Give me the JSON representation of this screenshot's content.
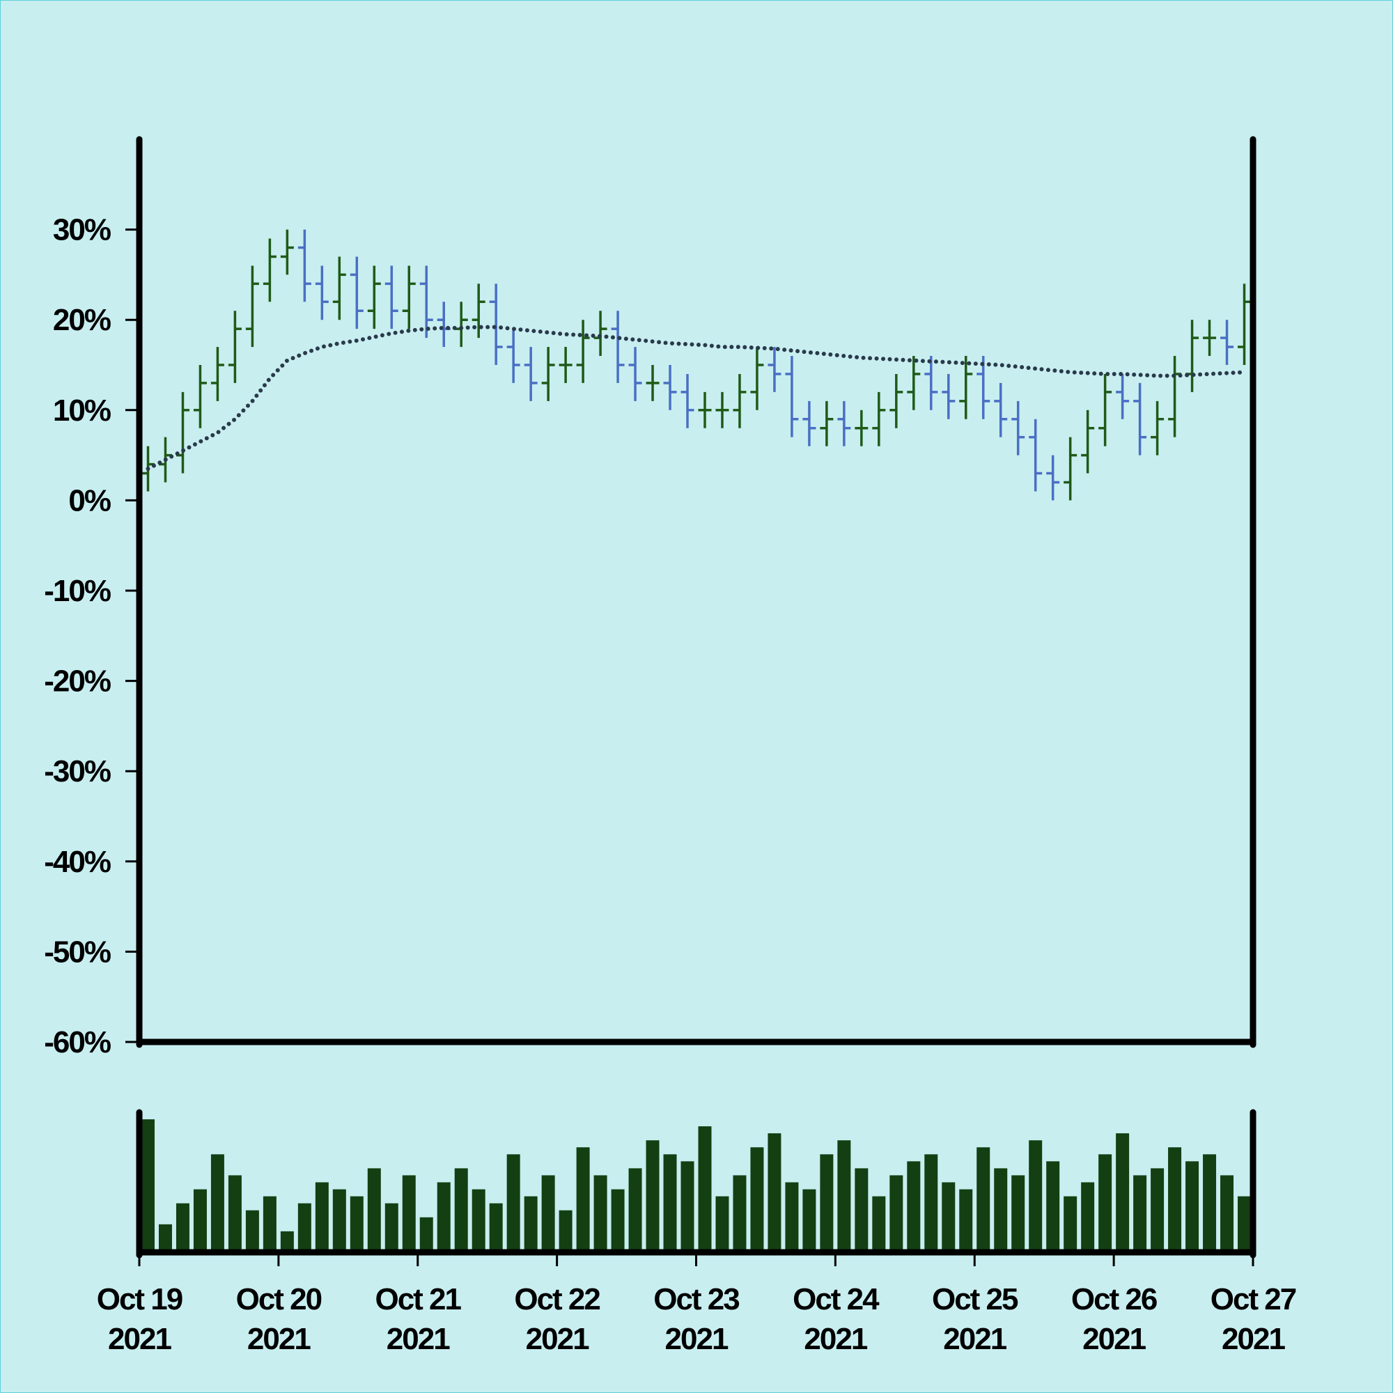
{
  "chart_data": [
    {
      "type": "ohlc",
      "x": [
        0,
        3,
        6,
        9,
        12,
        15,
        18,
        21,
        24,
        27,
        30,
        33,
        36,
        39,
        42,
        45,
        48,
        51,
        54,
        57,
        60,
        63,
        66,
        69,
        72,
        75,
        78,
        81,
        84,
        87,
        90,
        93,
        96,
        99,
        102,
        105,
        108,
        111,
        114,
        117,
        120,
        123,
        126,
        129,
        132,
        135,
        138,
        141,
        144,
        147,
        150,
        153,
        156,
        159,
        162,
        165,
        168,
        171,
        174,
        177,
        180,
        183,
        186,
        189
      ],
      "open": [
        3,
        4,
        5,
        10,
        13,
        15,
        19,
        24,
        27,
        28,
        24,
        22,
        25,
        21,
        24,
        21,
        24,
        20,
        19,
        20,
        22,
        17,
        15,
        13,
        15,
        15,
        18,
        19,
        15,
        13,
        13,
        12,
        10,
        10,
        10,
        12,
        15,
        14,
        9,
        8,
        9,
        8,
        8,
        10,
        12,
        14,
        12,
        11,
        14,
        11,
        9,
        7,
        3,
        2,
        5,
        8,
        12,
        11,
        7,
        9,
        14,
        18,
        18,
        17
      ],
      "high": [
        6,
        7,
        12,
        15,
        17,
        21,
        26,
        29,
        30,
        30,
        26,
        27,
        27,
        26,
        26,
        26,
        26,
        22,
        22,
        24,
        24,
        19,
        17,
        17,
        17,
        20,
        21,
        21,
        17,
        15,
        15,
        14,
        12,
        12,
        14,
        17,
        17,
        16,
        11,
        11,
        11,
        10,
        12,
        14,
        16,
        16,
        14,
        16,
        16,
        13,
        11,
        9,
        5,
        7,
        10,
        14,
        14,
        13,
        11,
        16,
        20,
        20,
        20,
        24
      ],
      "low": [
        1,
        2,
        3,
        8,
        11,
        13,
        17,
        22,
        25,
        22,
        20,
        20,
        19,
        19,
        19,
        19,
        18,
        17,
        17,
        18,
        15,
        13,
        11,
        11,
        13,
        13,
        16,
        13,
        11,
        11,
        10,
        8,
        8,
        8,
        8,
        10,
        12,
        7,
        6,
        6,
        6,
        6,
        6,
        8,
        10,
        10,
        9,
        9,
        9,
        7,
        5,
        1,
        0,
        0,
        3,
        6,
        9,
        5,
        5,
        7,
        12,
        16,
        15,
        15
      ],
      "close": [
        4,
        5,
        10,
        13,
        15,
        19,
        24,
        27,
        28,
        24,
        22,
        25,
        21,
        24,
        21,
        24,
        20,
        19,
        20,
        22,
        17,
        15,
        13,
        15,
        15,
        18,
        19,
        15,
        13,
        13,
        12,
        10,
        10,
        10,
        12,
        15,
        14,
        9,
        8,
        9,
        8,
        8,
        10,
        12,
        14,
        12,
        11,
        14,
        11,
        9,
        7,
        3,
        2,
        5,
        8,
        12,
        11,
        7,
        9,
        14,
        18,
        18,
        17,
        22
      ],
      "up_color": "#1f5a17",
      "down_color": "#4a6fc4",
      "moving_average": {
        "color": "#2a3a4a",
        "values": [
          3.5,
          4.5,
          5.5,
          6.5,
          7.5,
          9,
          11,
          13.5,
          15.5,
          16.3,
          17,
          17.4,
          17.7,
          18.1,
          18.5,
          18.8,
          19,
          19.1,
          19.1,
          19.2,
          19.2,
          19,
          18.8,
          18.6,
          18.4,
          18.3,
          18.2,
          18,
          17.8,
          17.6,
          17.4,
          17.3,
          17.2,
          17,
          17,
          16.9,
          16.8,
          16.6,
          16.4,
          16.2,
          16,
          15.8,
          15.7,
          15.6,
          15.5,
          15.4,
          15.3,
          15.2,
          15.1,
          15,
          14.8,
          14.6,
          14.4,
          14.2,
          14.1,
          14,
          14,
          13.9,
          13.8,
          13.8,
          13.9,
          14,
          14.1,
          14.2
        ]
      },
      "xlim": [
        0,
        192
      ],
      "ylim": [
        -60,
        40
      ],
      "yticks": [
        {
          "value": -60,
          "label": "-60%"
        },
        {
          "value": -50,
          "label": "-50%"
        },
        {
          "value": -40,
          "label": "-40%"
        },
        {
          "value": -30,
          "label": "-30%"
        },
        {
          "value": -20,
          "label": "-20%"
        },
        {
          "value": -10,
          "label": "-10%"
        },
        {
          "value": 0,
          "label": "0%"
        },
        {
          "value": 10,
          "label": "10%"
        },
        {
          "value": 20,
          "label": "20%"
        },
        {
          "value": 30,
          "label": "30%"
        }
      ]
    },
    {
      "type": "bar",
      "x": [
        0,
        3,
        6,
        9,
        12,
        15,
        18,
        21,
        24,
        27,
        30,
        33,
        36,
        39,
        42,
        45,
        48,
        51,
        54,
        57,
        60,
        63,
        66,
        69,
        72,
        75,
        78,
        81,
        84,
        87,
        90,
        93,
        96,
        99,
        102,
        105,
        108,
        111,
        114,
        117,
        120,
        123,
        126,
        129,
        132,
        135,
        138,
        141,
        144,
        147,
        150,
        153,
        156,
        159,
        162,
        165,
        168,
        171,
        174,
        177,
        180,
        183,
        186,
        189
      ],
      "values": [
        95,
        20,
        35,
        45,
        70,
        55,
        30,
        40,
        15,
        35,
        50,
        45,
        40,
        60,
        35,
        55,
        25,
        50,
        60,
        45,
        35,
        70,
        40,
        55,
        30,
        75,
        55,
        45,
        60,
        80,
        70,
        65,
        90,
        40,
        55,
        75,
        85,
        50,
        45,
        70,
        80,
        60,
        40,
        55,
        65,
        70,
        50,
        45,
        75,
        60,
        55,
        80,
        65,
        40,
        50,
        70,
        85,
        55,
        60,
        75,
        65,
        70,
        55,
        40
      ],
      "color": "#143f12",
      "xlim": [
        0,
        192
      ],
      "ylim": [
        0,
        100
      ],
      "xticks": [
        {
          "value": 0,
          "label": "Oct 19\n2021"
        },
        {
          "value": 24,
          "label": "Oct 20\n2021"
        },
        {
          "value": 48,
          "label": "Oct 21\n2021"
        },
        {
          "value": 72,
          "label": "Oct 22\n2021"
        },
        {
          "value": 96,
          "label": "Oct 23\n2021"
        },
        {
          "value": 120,
          "label": "Oct 24\n2021"
        },
        {
          "value": 144,
          "label": "Oct 25\n2021"
        },
        {
          "value": 168,
          "label": "Oct 26\n2021"
        },
        {
          "value": 192,
          "label": "Oct 27\n2021"
        }
      ]
    }
  ]
}
